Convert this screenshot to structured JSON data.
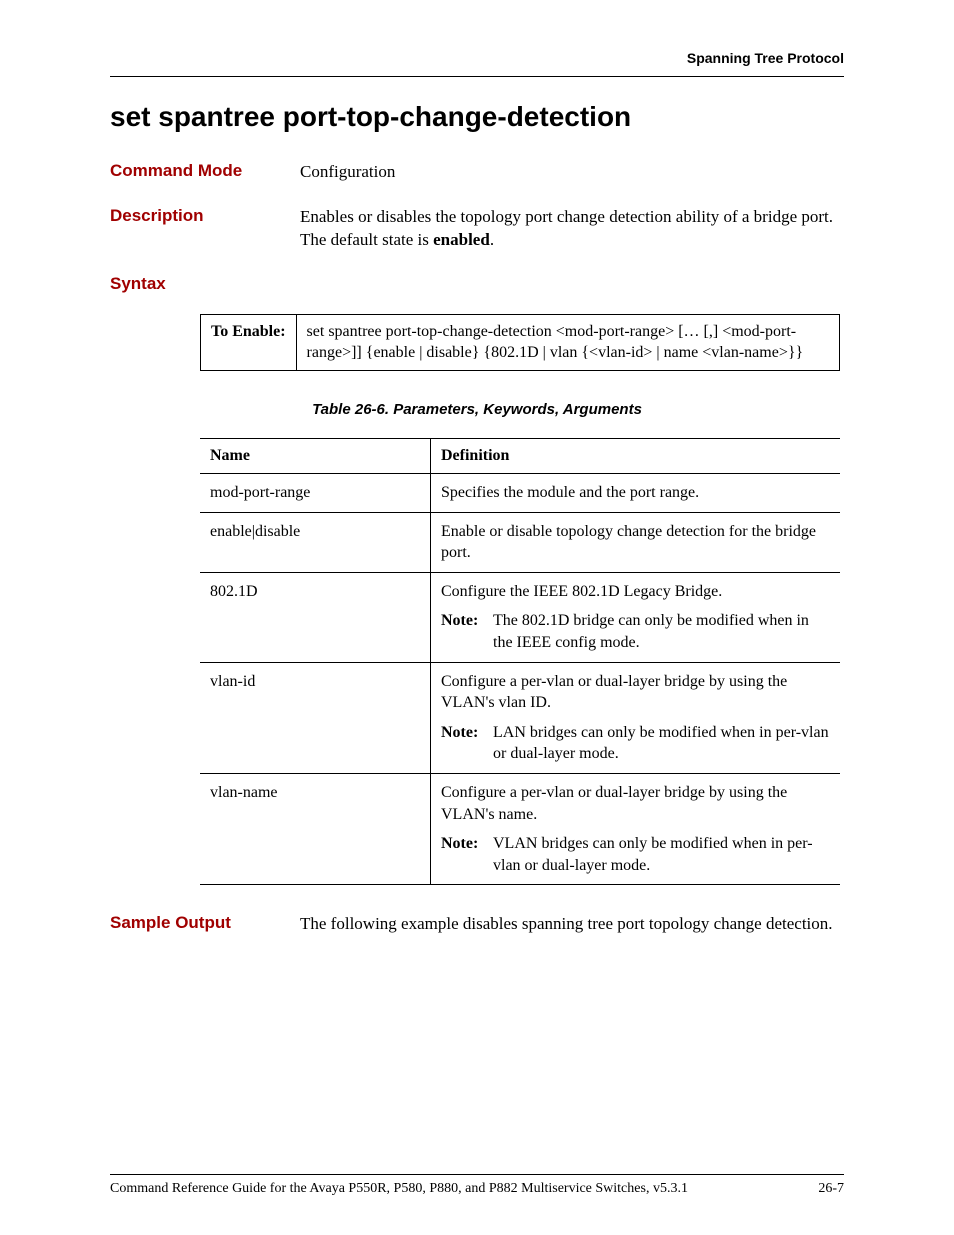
{
  "running_head": "Spanning Tree Protocol",
  "title": "set spantree port-top-change-detection",
  "command_mode": {
    "label": "Command Mode",
    "value": "Configuration"
  },
  "description": {
    "label": "Description",
    "text_pre": "Enables or disables the topology port change detection ability of a bridge port. The default state is ",
    "text_bold": "enabled",
    "text_post": "."
  },
  "syntax": {
    "label": "Syntax",
    "to_enable_label": "To Enable:",
    "command": "set spantree port-top-change-detection <mod-port-range> [… [,] <mod-port-range>]] {enable | disable} {802.1D | vlan {<vlan-id> | name <vlan-name>}}"
  },
  "table_caption": "Table 26-6.  Parameters, Keywords, Arguments",
  "param_headers": {
    "name": "Name",
    "definition": "Definition"
  },
  "params": [
    {
      "name": "mod-port-range",
      "def": "Specifies the module and the port range.",
      "note": null
    },
    {
      "name": "enable|disable",
      "def": "Enable or disable topology change detection for the bridge port.",
      "note": null
    },
    {
      "name": "802.1D",
      "def": "Configure the IEEE 802.1D Legacy Bridge.",
      "note": "The 802.1D bridge can only be modified when in the IEEE config mode."
    },
    {
      "name": "vlan-id",
      "def": "Configure a per-vlan or dual-layer bridge by using the VLAN's vlan ID.",
      "note": "LAN bridges can only be modified when in per-vlan or dual-layer mode."
    },
    {
      "name": "vlan-name",
      "def": "Configure a per-vlan or dual-layer bridge by using the VLAN's name.",
      "note": "VLAN bridges can only be modified when in per-vlan or dual-layer mode."
    }
  ],
  "note_label": "Note:",
  "sample_output": {
    "label": "Sample Output",
    "text": "The following example disables spanning tree port topology change detection."
  },
  "footer": {
    "left": "Command Reference Guide for the Avaya P550R, P580, P880, and P882 Multiservice Switches, v5.3.1",
    "right": "26-7"
  },
  "colors": {
    "heading": "#a00000",
    "text": "#000000",
    "background": "#ffffff"
  },
  "fonts": {
    "sans": "Verdana",
    "serif": "Georgia"
  }
}
